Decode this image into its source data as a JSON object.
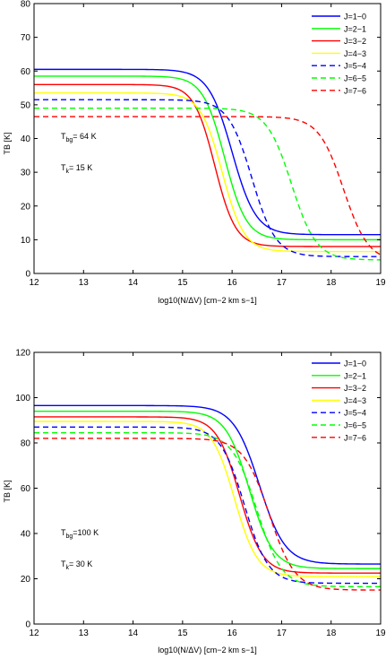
{
  "chart_data": [
    {
      "type": "line",
      "xlabel": "log10(N/ΔV) [cm−2 km s−1]",
      "ylabel": "TB [K]",
      "xlim": [
        12,
        19
      ],
      "ylim": [
        0,
        80
      ],
      "xticks": [
        12,
        13,
        14,
        15,
        16,
        17,
        18,
        19
      ],
      "yticks": [
        0,
        10,
        20,
        30,
        40,
        50,
        60,
        70,
        80
      ],
      "grid": false,
      "legend_position": "top-right",
      "annotations": [
        {
          "base": "T",
          "sub": "bg",
          "rest": "= 64 K"
        },
        {
          "base": "T",
          "sub": "k",
          "rest": "= 15 K"
        }
      ],
      "series": [
        {
          "name": "J=1−0",
          "color": "#0000ff",
          "dash": "solid",
          "start": 60.5,
          "end": 11.5,
          "mid": 16.0,
          "width": 0.24
        },
        {
          "name": "J=2−1",
          "color": "#00ff00",
          "dash": "solid",
          "start": 58.5,
          "end": 10.0,
          "mid": 15.85,
          "width": 0.22
        },
        {
          "name": "J=3−2",
          "color": "#ff0000",
          "dash": "solid",
          "start": 56.0,
          "end": 8.0,
          "mid": 15.65,
          "width": 0.21
        },
        {
          "name": "J=4−3",
          "color": "#ffff00",
          "dash": "solid",
          "start": 53.5,
          "end": 6.5,
          "mid": 15.8,
          "width": 0.22
        },
        {
          "name": "J=5−4",
          "color": "#0000ff",
          "dash": "dashed",
          "start": 51.5,
          "end": 5.0,
          "mid": 16.4,
          "width": 0.24
        },
        {
          "name": "J=6−5",
          "color": "#00ff00",
          "dash": "dashed",
          "start": 49.0,
          "end": 4.0,
          "mid": 17.2,
          "width": 0.25
        },
        {
          "name": "J=7−6",
          "color": "#ff0000",
          "dash": "dashed",
          "start": 46.5,
          "end": 3.5,
          "mid": 18.25,
          "width": 0.25
        }
      ]
    },
    {
      "type": "line",
      "xlabel": "log10(N/ΔV) [cm−2 km s−1]",
      "ylabel": "TB [K]",
      "xlim": [
        12,
        19
      ],
      "ylim": [
        0,
        120
      ],
      "xticks": [
        12,
        13,
        14,
        15,
        16,
        17,
        18,
        19
      ],
      "yticks": [
        0,
        20,
        40,
        60,
        80,
        100,
        120
      ],
      "grid": false,
      "legend_position": "top-right",
      "annotations": [
        {
          "base": "T",
          "sub": "bg",
          "rest": "=100 K"
        },
        {
          "base": "T",
          "sub": "k",
          "rest": "= 30 K"
        }
      ],
      "series": [
        {
          "name": "J=1−0",
          "color": "#0000ff",
          "dash": "solid",
          "start": 96.5,
          "end": 26.5,
          "mid": 16.55,
          "width": 0.26
        },
        {
          "name": "J=2−1",
          "color": "#00ff00",
          "dash": "solid",
          "start": 94.0,
          "end": 24.5,
          "mid": 16.35,
          "width": 0.24
        },
        {
          "name": "J=3−2",
          "color": "#ff0000",
          "dash": "solid",
          "start": 91.5,
          "end": 22.5,
          "mid": 16.15,
          "width": 0.23
        },
        {
          "name": "J=4−3",
          "color": "#ffff00",
          "dash": "solid",
          "start": 89.5,
          "end": 21.0,
          "mid": 16.05,
          "width": 0.23
        },
        {
          "name": "J=5−4",
          "color": "#0000ff",
          "dash": "dashed",
          "start": 87.0,
          "end": 18.0,
          "mid": 16.25,
          "width": 0.24
        },
        {
          "name": "J=6−5",
          "color": "#00ff00",
          "dash": "dashed",
          "start": 84.5,
          "end": 16.5,
          "mid": 16.5,
          "width": 0.25
        },
        {
          "name": "J=7−6",
          "color": "#ff0000",
          "dash": "dashed",
          "start": 82.0,
          "end": 15.0,
          "mid": 16.75,
          "width": 0.26
        }
      ]
    }
  ]
}
